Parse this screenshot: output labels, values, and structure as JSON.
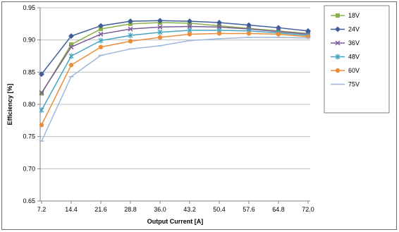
{
  "chart_data": {
    "type": "line",
    "xlabel": "Output Current [A]",
    "ylabel": "Efficiency [%]",
    "x": [
      7.2,
      14.4,
      21.6,
      28.8,
      36.0,
      43.2,
      50.4,
      57.6,
      64.8,
      72.0
    ],
    "x_tick_labels": [
      "7.2",
      "14.4",
      "21.6",
      "28.8",
      "36.0",
      "43.2",
      "50.4",
      "57.6",
      "64.8",
      "72.0"
    ],
    "ylim": [
      0.65,
      0.95
    ],
    "y_ticks": [
      0.65,
      0.7,
      0.75,
      0.8,
      0.85,
      0.9,
      0.95
    ],
    "y_tick_labels": [
      "0.65",
      "0.70",
      "0.75",
      "0.80",
      "0.85",
      "0.90",
      "0.95"
    ],
    "grid": "horizontal",
    "legend_position": "right",
    "series": [
      {
        "name": "18V",
        "color": "#8ab04a",
        "marker": "square",
        "values": [
          0.817,
          0.893,
          0.917,
          0.925,
          0.927,
          0.926,
          0.922,
          0.918,
          0.914,
          0.91
        ]
      },
      {
        "name": "24V",
        "color": "#3f5e99",
        "marker": "diamond",
        "values": [
          0.847,
          0.906,
          0.922,
          0.929,
          0.93,
          0.929,
          0.927,
          0.923,
          0.919,
          0.914
        ]
      },
      {
        "name": "36V",
        "color": "#7b5c97",
        "marker": "x",
        "values": [
          0.818,
          0.889,
          0.909,
          0.917,
          0.92,
          0.921,
          0.92,
          0.917,
          0.913,
          0.909
        ]
      },
      {
        "name": "48V",
        "color": "#45a5c0",
        "marker": "star",
        "values": [
          0.791,
          0.875,
          0.899,
          0.907,
          0.912,
          0.915,
          0.915,
          0.914,
          0.911,
          0.907
        ]
      },
      {
        "name": "60V",
        "color": "#eb8e3c",
        "marker": "circle",
        "values": [
          0.768,
          0.861,
          0.889,
          0.898,
          0.904,
          0.909,
          0.91,
          0.91,
          0.909,
          0.905
        ]
      },
      {
        "name": "75V",
        "color": "#9fb8dc",
        "marker": "plus",
        "values": [
          0.743,
          0.843,
          0.876,
          0.886,
          0.891,
          0.899,
          0.902,
          0.904,
          0.904,
          0.903
        ]
      }
    ]
  }
}
